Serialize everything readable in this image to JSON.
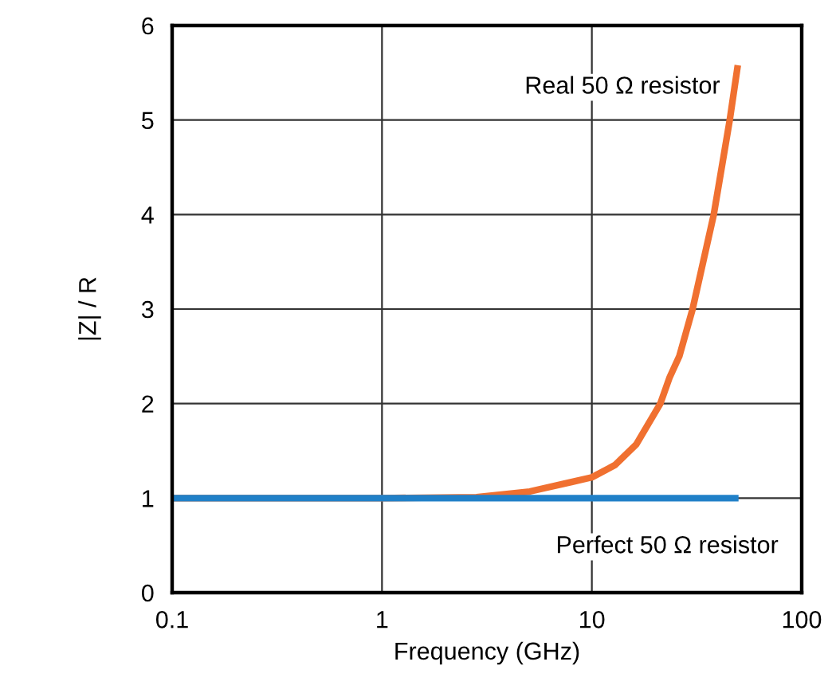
{
  "chart_data": {
    "type": "line",
    "xlabel": "Frequency (GHz)",
    "ylabel": "|Z| / R",
    "log": "x",
    "xlim": [
      0.1,
      100
    ],
    "xticks": [
      0.1,
      1,
      10,
      100
    ],
    "ylim": [
      0,
      6
    ],
    "yticks": [
      0,
      1,
      2,
      3,
      4,
      5,
      6
    ],
    "grid": true,
    "legend": false,
    "series": [
      {
        "name": "Real 50 Ω resistor",
        "color": "#f07030",
        "x": [
          0.1,
          1,
          2.82,
          5.06,
          8,
          10,
          12.9,
          16.3,
          21.2,
          23.5,
          26.1,
          30.2,
          38.1,
          45.4,
          49.6
        ],
        "values": [
          1.0,
          1.0,
          1.01,
          1.07,
          1.17,
          1.22,
          1.35,
          1.57,
          2.0,
          2.28,
          2.5,
          3.0,
          4.0,
          5.0,
          5.58
        ]
      },
      {
        "name": "Perfect 50 Ω resistor",
        "color": "#2080c8",
        "x": [
          0.1,
          50
        ],
        "values": [
          1,
          1
        ]
      }
    ]
  }
}
